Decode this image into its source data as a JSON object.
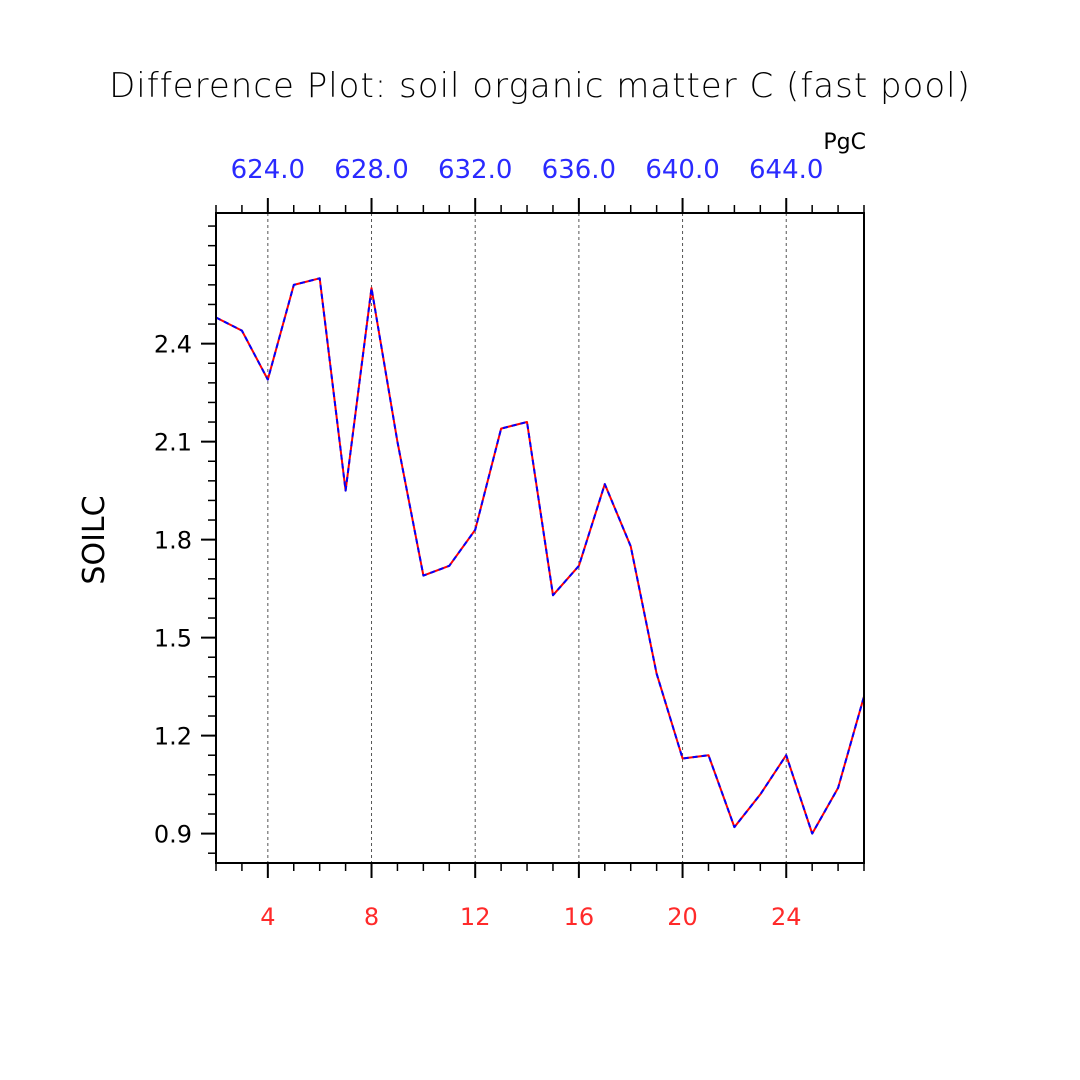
{
  "chart_data": {
    "type": "line",
    "title": "Difference Plot: soil organic matter C (fast pool)",
    "units": "PgC",
    "ylabel": "SOILC",
    "xlabel": "",
    "xlim": [
      2,
      27
    ],
    "ylim": [
      0.81,
      2.8
    ],
    "x_ticks": [
      4,
      8,
      12,
      16,
      20,
      24
    ],
    "x_tick_labels": [
      "4",
      "8",
      "12",
      "16",
      "20",
      "24"
    ],
    "y_ticks": [
      0.9,
      1.2,
      1.5,
      1.8,
      2.1,
      2.4
    ],
    "y_tick_labels": [
      "0.9",
      "1.2",
      "1.5",
      "1.8",
      "2.1",
      "2.4"
    ],
    "top_tick_labels": [
      "624.0",
      "628.0",
      "632.0",
      "636.0",
      "640.0",
      "644.0"
    ],
    "grid": "vertical dashed at major x ticks",
    "colors": {
      "bottom_axis": "#ff2a2a",
      "top_axis": "#2a2aff",
      "series_a": "#ff0000",
      "series_b": "#0000ff"
    },
    "x": [
      2,
      3,
      4,
      5,
      6,
      7,
      8,
      9,
      10,
      11,
      12,
      13,
      14,
      15,
      16,
      17,
      18,
      19,
      20,
      21,
      22,
      23,
      24,
      25,
      26,
      27
    ],
    "series": [
      {
        "values": [
          2.48,
          2.44,
          2.29,
          2.58,
          2.6,
          1.95,
          2.57,
          2.1,
          1.69,
          1.72,
          1.83,
          2.14,
          2.16,
          1.63,
          1.72,
          1.97,
          1.78,
          1.39,
          1.13,
          1.14,
          0.92,
          1.02,
          1.14,
          0.9,
          1.04,
          1.32
        ]
      },
      {
        "values": [
          2.48,
          2.44,
          2.29,
          2.58,
          2.6,
          1.95,
          2.57,
          2.1,
          1.69,
          1.72,
          1.83,
          2.14,
          2.16,
          1.63,
          1.72,
          1.97,
          1.78,
          1.39,
          1.13,
          1.14,
          0.92,
          1.02,
          1.14,
          0.9,
          1.04,
          1.32
        ]
      }
    ]
  }
}
